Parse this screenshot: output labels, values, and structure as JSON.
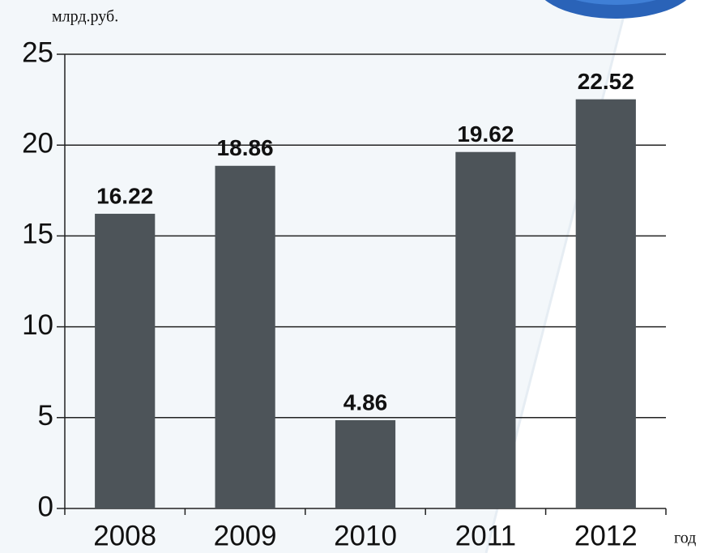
{
  "chart_data": {
    "type": "bar",
    "y_label": "млрд.руб.",
    "x_label": "год",
    "categories": [
      "2008",
      "2009",
      "2010",
      "2011",
      "2012"
    ],
    "values": [
      16.22,
      18.86,
      4.86,
      19.62,
      22.52
    ],
    "color": "#4d5459",
    "ylim": [
      0,
      25
    ],
    "yticks": [
      0,
      5,
      10,
      15,
      20,
      25
    ],
    "grid": true
  }
}
